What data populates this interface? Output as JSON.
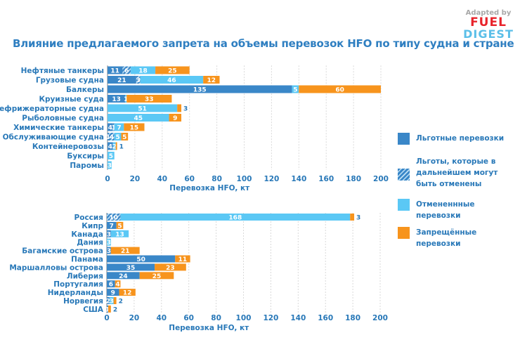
{
  "title": "Влияние предлагаемого запрета на объемы перевозок HFO по типу судна и стране",
  "logo": {
    "line1": "Adapted by",
    "line2": "FUEL",
    "line3": "DIGEST"
  },
  "colors": {
    "benefit": "#3a87c8",
    "revocable": "#3a87c8",
    "cancelled": "#5bc8f5",
    "banned": "#f7941d",
    "text": "#2878b8"
  },
  "legend": [
    {
      "label": "Льготные перевозки",
      "style": "solid",
      "color": "#3a87c8"
    },
    {
      "label": "Льготы, которые в дальнейшем могут быть отменены",
      "style": "hatched",
      "color": "#3a87c8"
    },
    {
      "label": "Отмененнные перевозки",
      "style": "solid",
      "color": "#5bc8f5"
    },
    {
      "label": "Запрещённые перевозки",
      "style": "solid",
      "color": "#f7941d"
    }
  ],
  "chart_data": [
    {
      "type": "bar",
      "orientation": "horizontal",
      "stacked": true,
      "xlabel": "Перевозка HFO, кт",
      "xlim": [
        0,
        200
      ],
      "xticks": [
        0,
        20,
        40,
        60,
        80,
        100,
        120,
        140,
        160,
        180,
        200
      ],
      "grid": true,
      "categories": [
        "Нефтяные танкеры",
        "Грузовые судна",
        "Балкеры",
        "Круизные суда",
        "Рефрижераторные судна",
        "Рыболовные судна",
        "Химические танкеры",
        "Обслуживающие судна",
        "Контейнеровозы",
        "Буксиры",
        "Паромы"
      ],
      "series": [
        {
          "name": "Льготные перевозки",
          "values": [
            11,
            21,
            135,
            13,
            0,
            0,
            4,
            1,
            4,
            0,
            0
          ]
        },
        {
          "name": "Льготы, которые в дальнейшем могут быть отменены",
          "values": [
            6,
            3,
            0,
            0,
            0,
            0,
            1,
            4,
            0,
            0,
            0
          ]
        },
        {
          "name": "Отмененнные перевозки",
          "values": [
            18,
            46,
            5,
            1,
            51,
            45,
            7,
            5,
            2,
            5,
            3
          ]
        },
        {
          "name": "Запрещённые перевозки",
          "values": [
            25,
            12,
            60,
            33,
            3,
            9,
            15,
            5,
            1,
            0,
            0
          ]
        }
      ]
    },
    {
      "type": "bar",
      "orientation": "horizontal",
      "stacked": true,
      "xlabel": "Перевозка HFO, кт",
      "xlim": [
        0,
        200
      ],
      "xticks": [
        0,
        20,
        40,
        60,
        80,
        100,
        120,
        140,
        160,
        180,
        200
      ],
      "grid": true,
      "categories": [
        "Россия",
        "Кипр",
        "Канада",
        "Дания",
        "Багамские острова",
        "Панама",
        "Маршалловы острова",
        "Либерия",
        "Португалия",
        "Нидерланды",
        "Норвегия",
        "США"
      ],
      "series": [
        {
          "name": "Льготные перевозки",
          "values": [
            0,
            7,
            3,
            0,
            3,
            50,
            35,
            24,
            6,
            9,
            2,
            1
          ]
        },
        {
          "name": "Льготы, которые в дальнейшем могут быть отменены",
          "values": [
            10,
            0,
            0,
            0,
            0,
            0,
            0,
            0,
            0,
            0,
            0,
            0
          ]
        },
        {
          "name": "Отмененнные перевозки",
          "values": [
            168,
            0,
            13,
            3,
            0,
            0,
            0,
            0,
            0,
            0,
            3,
            0
          ]
        },
        {
          "name": "Запрещённые перевозки",
          "values": [
            3,
            5,
            0,
            0,
            21,
            11,
            23,
            25,
            4,
            12,
            2,
            2
          ]
        }
      ]
    }
  ]
}
